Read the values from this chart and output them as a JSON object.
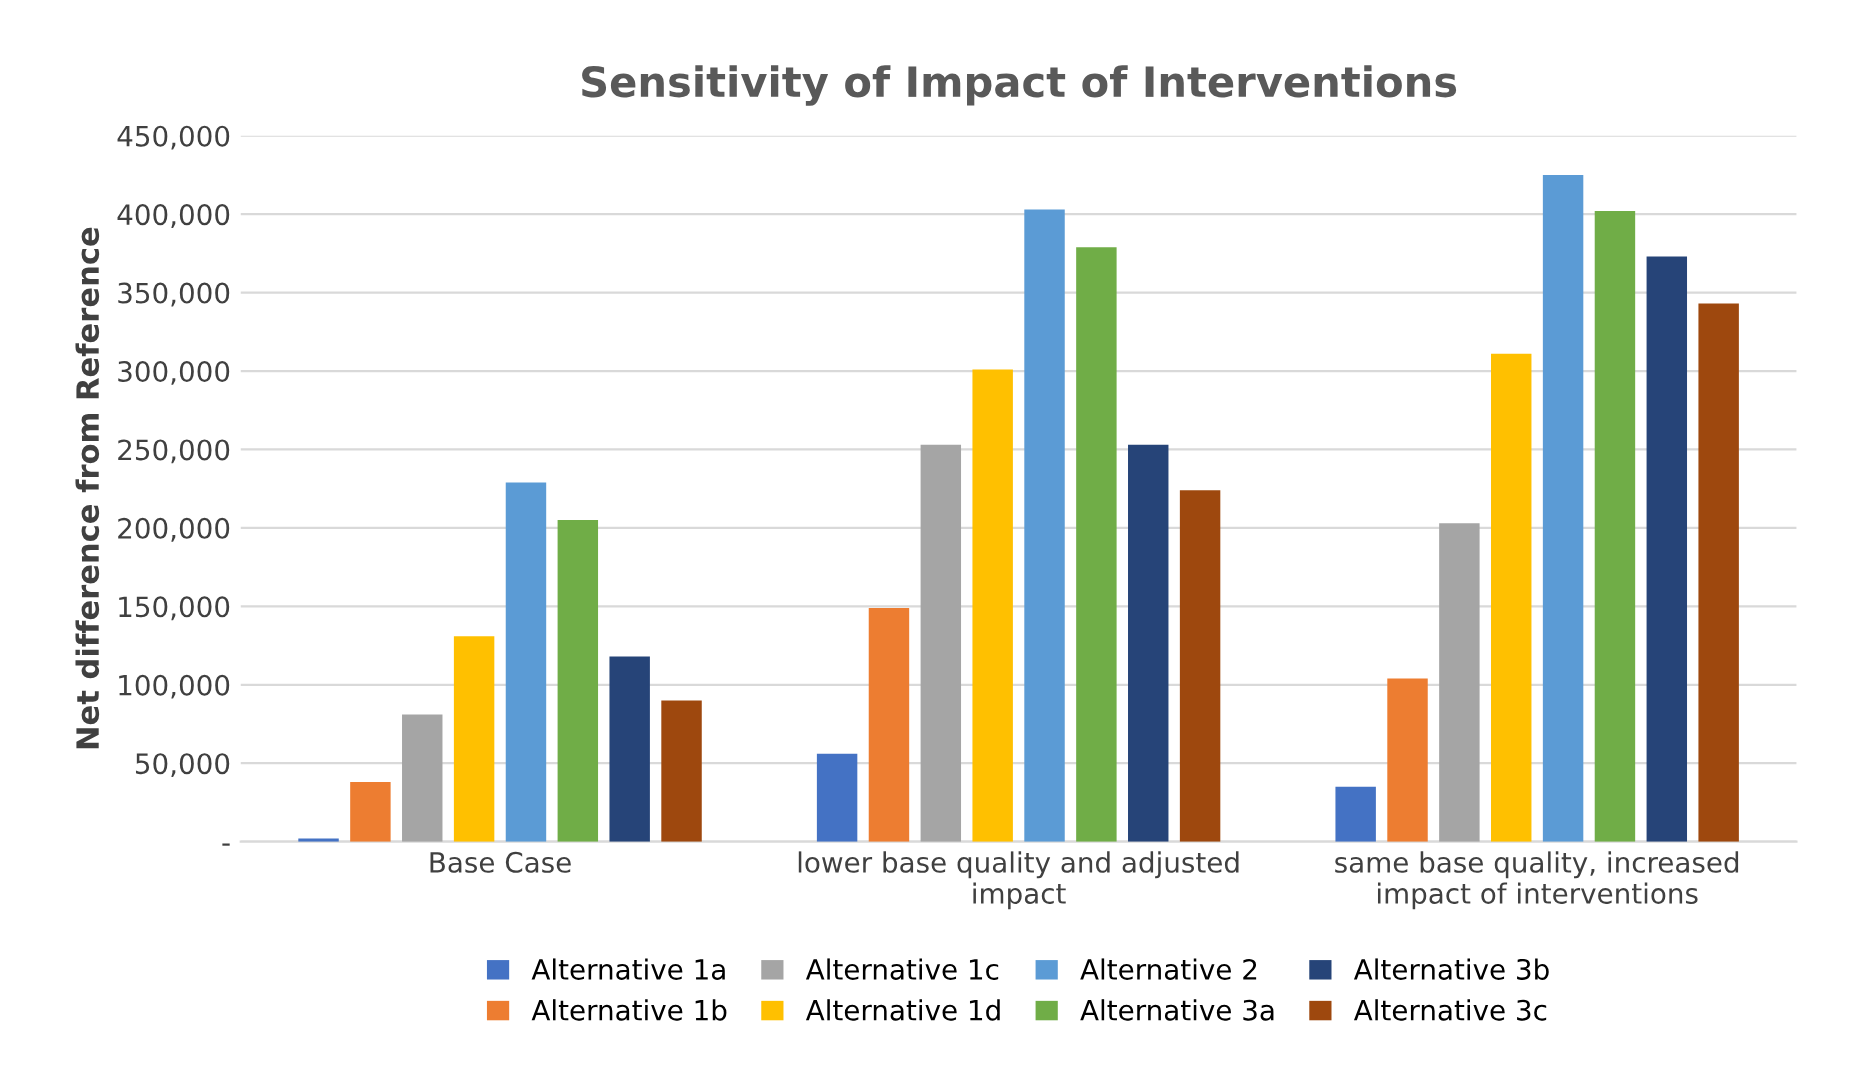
{
  "chart_data": {
    "type": "bar",
    "title": "Sensitivity of Impact of Interventions",
    "ylabel": "Net difference from Reference",
    "categories": [
      "Base Case",
      "lower base quality and adjusted\nimpact",
      "same base quality, increased\nimpact of interventions"
    ],
    "series": [
      {
        "name": "Alternative 1a",
        "color": "#4472c4",
        "values": [
          2000,
          56000,
          35000
        ]
      },
      {
        "name": "Alternative 1b",
        "color": "#ed7d31",
        "values": [
          38000,
          149000,
          104000
        ]
      },
      {
        "name": "Alternative 1c",
        "color": "#a5a5a5",
        "values": [
          81000,
          253000,
          203000
        ]
      },
      {
        "name": "Alternative 1d",
        "color": "#ffc000",
        "values": [
          131000,
          301000,
          311000
        ]
      },
      {
        "name": "Alternative 2",
        "color": "#5b9bd5",
        "values": [
          229000,
          403000,
          425000
        ]
      },
      {
        "name": "Alternative 3a",
        "color": "#70ad47",
        "values": [
          205000,
          379000,
          402000
        ]
      },
      {
        "name": "Alternative 3b",
        "color": "#264478",
        "values": [
          118000,
          253000,
          373000
        ]
      },
      {
        "name": "Alternative 3c",
        "color": "#9e480e",
        "values": [
          90000,
          224000,
          343000
        ]
      }
    ],
    "ylim": [
      0,
      450000
    ],
    "yticks": [
      {
        "value": 0,
        "label": "-"
      },
      {
        "value": 50000,
        "label": "50,000"
      },
      {
        "value": 100000,
        "label": "100,000"
      },
      {
        "value": 150000,
        "label": "150,000"
      },
      {
        "value": 200000,
        "label": "200,000"
      },
      {
        "value": 250000,
        "label": "250,000"
      },
      {
        "value": 300000,
        "label": "300,000"
      },
      {
        "value": 350000,
        "label": "350,000"
      },
      {
        "value": 400000,
        "label": "400,000"
      },
      {
        "value": 450000,
        "label": "450,000"
      }
    ],
    "grid": "y",
    "legend": "bottom"
  }
}
